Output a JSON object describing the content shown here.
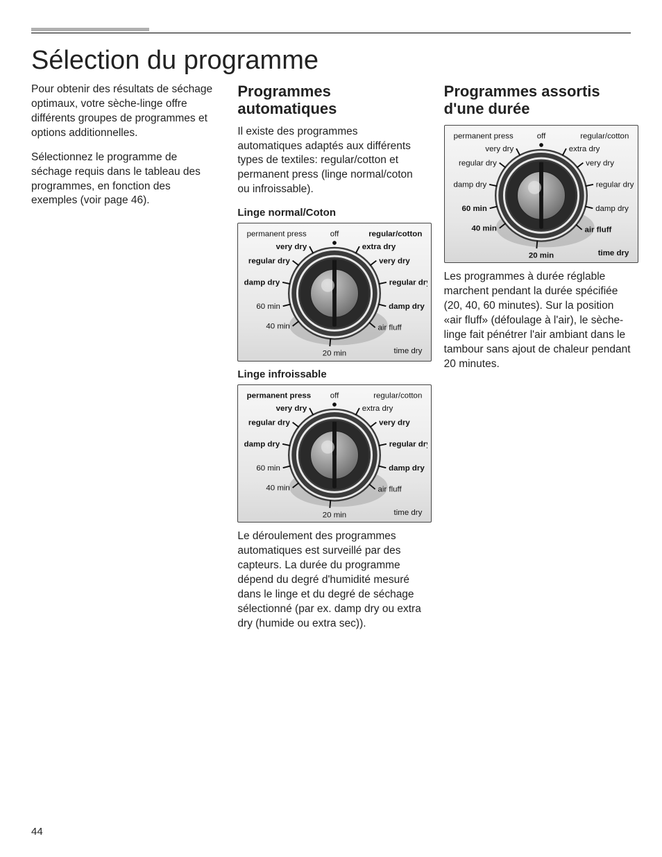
{
  "page_number": "44",
  "title": "Sélection du programme",
  "intro_p1": "Pour obtenir des résultats de séchage optimaux, votre sèche-linge offre différents groupes de programmes et options additionnelles.",
  "intro_p2": "Sélectionnez le programme de séchage requis dans le tableau des programmes, en fonction des exemples (voir page 46).",
  "auto": {
    "heading": "Programmes automatiques",
    "p1": "Il existe des programmes automatiques adaptés aux différents types de textiles: regular/cotton et permanent press (linge normal/coton ou infroissable).",
    "cap1": "Linge normal/Coton",
    "cap2": "Linge infroissable",
    "p2": "Le déroulement des programmes automatiques est surveillé par des capteurs. La durée du programme dépend du degré d'humidité mesuré dans le linge et du degré de séchage sélectionné (par ex. damp dry ou extra dry (humide ou extra sec))."
  },
  "timed": {
    "heading": "Programmes assortis d'une durée",
    "p1": "Les programmes à durée réglable marchent pendant la durée spécifiée (20, 40, 60 minutes). Sur la position «air fluff» (défoulage à l'air), le sèche-linge fait pénétrer l'air ambiant dans le tambour sans ajout de chaleur pendant 20 minutes."
  },
  "dial": {
    "top_left": "permanent press",
    "top_center": "off",
    "top_right": "regular/cotton",
    "right": [
      "extra dry",
      "very dry",
      "regular dry",
      "damp dry",
      "air fluff"
    ],
    "left": [
      "very dry",
      "regular dry",
      "damp dry",
      "60 min",
      "40 min"
    ],
    "bottom": "20 min",
    "bottom_right": "time dry",
    "colors": {
      "face_outer": "#3b3b3b",
      "face_ring": "#e8e8e8",
      "face_inner": "#2a2a2a",
      "knob_light": "#cfcfcf",
      "knob_dark": "#6e6e6e",
      "bg_top": "#f7f7f7",
      "bg_bottom": "#d8d8d8",
      "shadow": "#9a9a9a"
    }
  },
  "highlight": {
    "cotton": [
      "extra dry",
      "very dry",
      "regular dry",
      "damp dry"
    ],
    "perm": [
      "very dry",
      "regular dry",
      "damp dry"
    ],
    "timed": [
      "60 min",
      "40 min",
      "20 min",
      "air fluff"
    ]
  }
}
